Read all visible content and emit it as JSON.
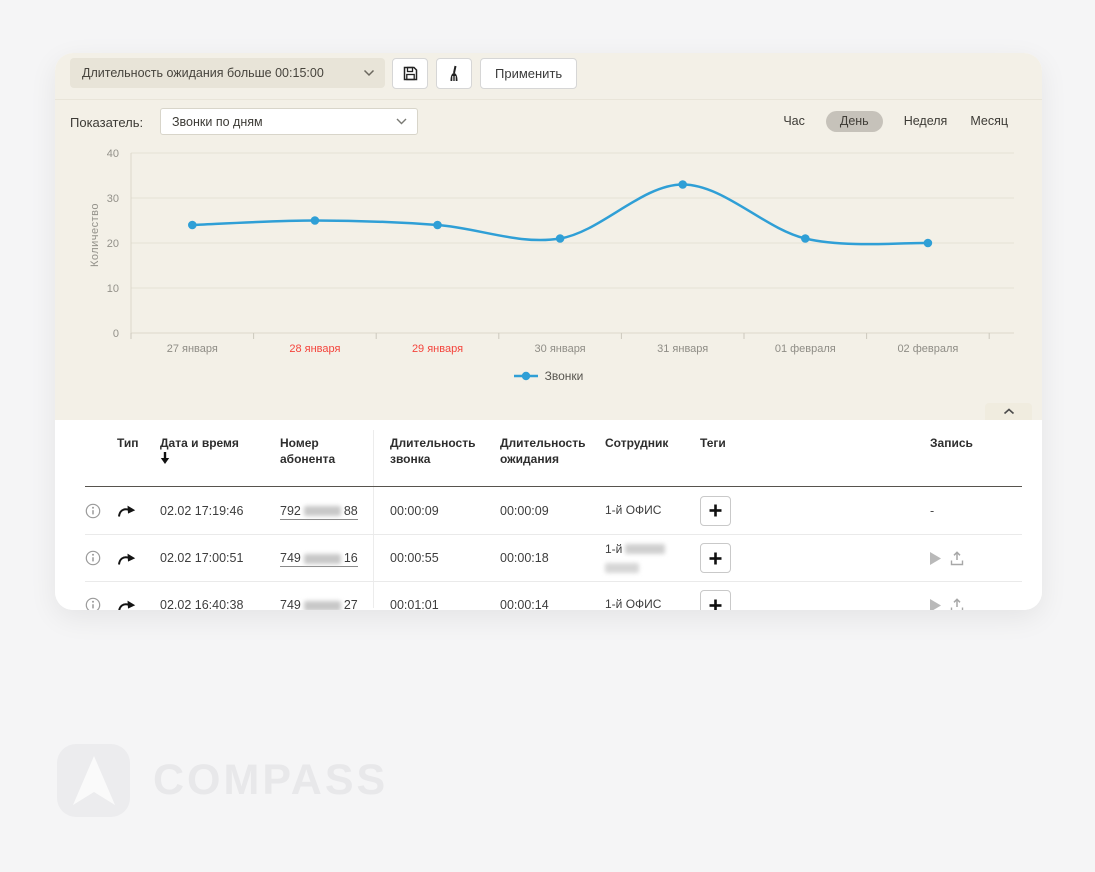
{
  "toolbar": {
    "filter_value": "Длительность ожидания больше 00:15:00",
    "filter_chevron_icon": "chevron-down-icon",
    "save_icon": "floppy-save-icon",
    "clear_icon": "broom-clear-icon",
    "apply_label": "Применить"
  },
  "chart_panel": {
    "indicator_label": "Показатель:",
    "indicator_value": "Звонки по дням",
    "period_tabs": [
      {
        "label": "Час",
        "active": false
      },
      {
        "label": "День",
        "active": true
      },
      {
        "label": "Неделя",
        "active": false
      },
      {
        "label": "Месяц",
        "active": false
      }
    ],
    "collapse_icon": "chevron-up-icon"
  },
  "chart_data": {
    "type": "line",
    "ylabel": "Количество",
    "categories": [
      "27 января",
      "28 января",
      "29 января",
      "30 января",
      "31 января",
      "01 февраля",
      "02 февраля"
    ],
    "highlighted_categories": [
      "28 января",
      "29 января"
    ],
    "series": [
      {
        "name": "Звонки",
        "values": [
          24,
          25,
          24,
          21,
          33,
          21,
          20
        ],
        "color": "#2f9fd6"
      }
    ],
    "ylim": [
      0,
      40
    ],
    "yticks": [
      0,
      10,
      20,
      30,
      40
    ],
    "grid": true,
    "legend_position": "bottom"
  },
  "table": {
    "headers": {
      "type": "Тип",
      "datetime": "Дата и время",
      "phone": "Номер абонента",
      "call_duration": "Длительность звонка",
      "wait_duration": "Длительность ожидания",
      "employee": "Сотрудник",
      "tags": "Теги",
      "record": "Запись"
    },
    "sort": {
      "column": "datetime",
      "direction": "desc"
    },
    "row_icons": {
      "info": "info-icon",
      "direction": "outgoing-call-icon"
    },
    "rows": [
      {
        "datetime": "02.02 17:19:46",
        "phone_prefix": "792",
        "phone_suffix": "88",
        "phone_redacted": true,
        "call_duration": "00:00:09",
        "wait_duration": "00:00:09",
        "employee": "1-й ОФИС",
        "employee_redacted": false,
        "record_available": false,
        "record_placeholder": "-"
      },
      {
        "datetime": "02.02 17:00:51",
        "phone_prefix": "749",
        "phone_suffix": "16",
        "phone_redacted": true,
        "call_duration": "00:00:55",
        "wait_duration": "00:00:18",
        "employee": "1-й",
        "employee_redacted": true,
        "record_available": true,
        "record_placeholder": ""
      },
      {
        "datetime": "02.02 16:40:38",
        "phone_prefix": "749",
        "phone_suffix": "27",
        "phone_redacted": true,
        "call_duration": "00:01:01",
        "wait_duration": "00:00:14",
        "employee": "1-й ОФИС",
        "employee_redacted": false,
        "record_available": true,
        "record_placeholder": ""
      }
    ]
  },
  "watermark": {
    "brand": "COMPASS",
    "logo_icon": "compass-arrow-icon"
  },
  "colors": {
    "accent_blue": "#2f9fd6",
    "highlight_red": "#f4443c",
    "panel_beige": "#f3f0e7",
    "active_pill_gray": "#c6c2ba",
    "page_background": "#f5f5f6"
  }
}
